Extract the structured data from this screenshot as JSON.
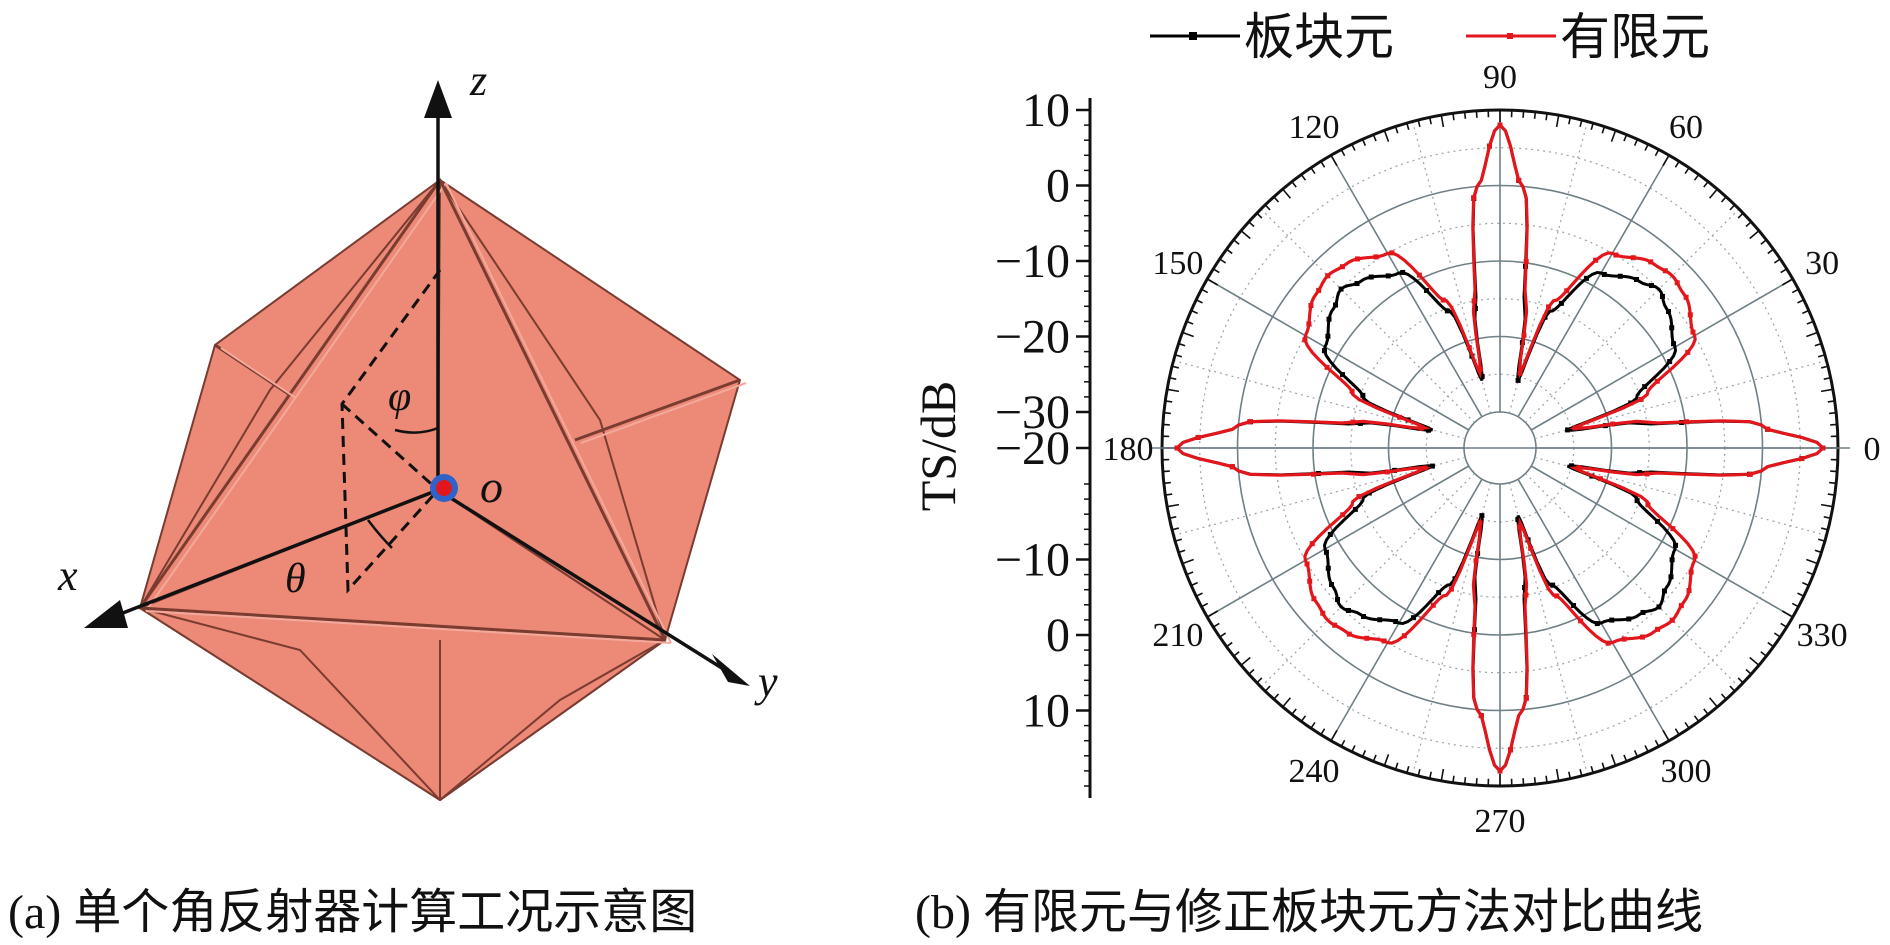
{
  "left_panel": {
    "caption": "(a) 单个角反射器计算工况示意图",
    "axis_labels": {
      "x": "x",
      "y": "y",
      "z": "z",
      "origin": "o",
      "phi": "φ",
      "theta": "θ"
    },
    "colors": {
      "face": "#ec8977",
      "edge": "#7a3b30",
      "origin_ring": "#2f63c9",
      "origin_dot": "#e2161b"
    }
  },
  "right_panel": {
    "caption": "(b) 有限元与修正板块元方法对比曲线",
    "legend": [
      {
        "label": "板块元",
        "color": "#000000"
      },
      {
        "label": "有限元",
        "color": "#e2161b"
      }
    ]
  },
  "chart_data": {
    "type": "polar",
    "ylabel": "TS/dB",
    "radial_tick_labels": [
      "10",
      "0",
      "−10",
      "−20",
      "−30",
      "−20",
      "−10",
      "0",
      "10"
    ],
    "radial_range_dB": [
      -30,
      10
    ],
    "angle_ticks_deg": [
      0,
      30,
      60,
      90,
      120,
      150,
      180,
      210,
      240,
      270,
      300,
      330
    ],
    "angle_tick_labels": [
      "0",
      "30",
      "60",
      "90",
      "120",
      "150",
      "180",
      "210",
      "240",
      "270",
      "300",
      "330"
    ],
    "grid": true,
    "legend_position": "top",
    "series": [
      {
        "name": "有限元",
        "color": "#e2161b",
        "points": [
          [
            0,
            8
          ],
          [
            5,
            0
          ],
          [
            10,
            -15
          ],
          [
            14,
            -24
          ],
          [
            15,
            -24.5
          ],
          [
            20,
            -14
          ],
          [
            30,
            -5
          ],
          [
            40,
            -3
          ],
          [
            45,
            -2.5
          ],
          [
            50,
            -3
          ],
          [
            60,
            -5
          ],
          [
            70,
            -14
          ],
          [
            75,
            -24.5
          ],
          [
            76,
            -24
          ],
          [
            80,
            -15
          ],
          [
            85,
            0
          ],
          [
            90,
            8
          ]
        ],
        "symmetry": "8-fold"
      },
      {
        "name": "板块元",
        "color": "#000000",
        "points": [
          [
            0,
            8
          ],
          [
            5,
            0
          ],
          [
            10,
            -16
          ],
          [
            14,
            -25
          ],
          [
            15,
            -25.5
          ],
          [
            20,
            -15.5
          ],
          [
            30,
            -8
          ],
          [
            40,
            -6
          ],
          [
            45,
            -5
          ],
          [
            50,
            -6
          ],
          [
            60,
            -8
          ],
          [
            70,
            -15.5
          ],
          [
            75,
            -25.5
          ],
          [
            76,
            -25
          ],
          [
            80,
            -16
          ],
          [
            85,
            0
          ],
          [
            90,
            8
          ]
        ],
        "symmetry": "8-fold"
      }
    ]
  }
}
